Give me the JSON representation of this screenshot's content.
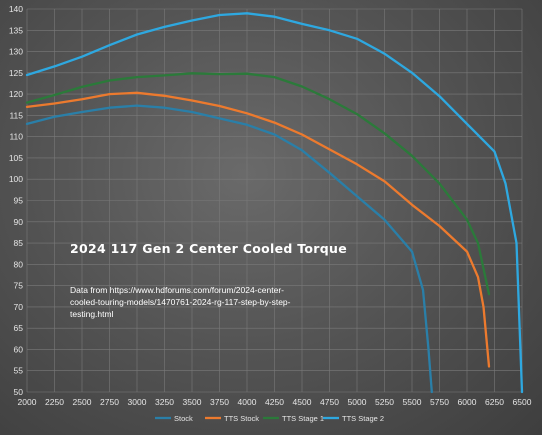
{
  "chart_data": {
    "type": "line",
    "title": "",
    "xlabel": "",
    "ylabel": "",
    "xlim": [
      2000,
      6500
    ],
    "ylim": [
      50,
      140
    ],
    "x_ticks": [
      "2000",
      "2250",
      "2500",
      "2750",
      "3000",
      "3250",
      "3500",
      "3750",
      "4000",
      "4250",
      "4500",
      "4750",
      "5000",
      "5250",
      "5500",
      "5750",
      "6000",
      "6250",
      "6500"
    ],
    "y_ticks": [
      "50",
      "55",
      "60",
      "65",
      "70",
      "75",
      "80",
      "85",
      "90",
      "95",
      "100",
      "105",
      "110",
      "115",
      "120",
      "125",
      "130",
      "135",
      "140"
    ],
    "grid": true,
    "legend_position": "bottom",
    "annotations": {
      "title": "2024 117 Gen 2 Center Cooled Torque",
      "note_lines": [
        "Data from https://www.hdforums.com/forum/2024-center-",
        "cooled-touring-models/1470761-2024-rg-117-step-by-step-",
        "testing.html"
      ]
    },
    "series": [
      {
        "name": "Stock",
        "color": "#2a7fa8",
        "points": [
          [
            2000,
            113
          ],
          [
            2250,
            114.7
          ],
          [
            2500,
            115.8
          ],
          [
            2750,
            116.8
          ],
          [
            3000,
            117.3
          ],
          [
            3250,
            116.8
          ],
          [
            3500,
            115.8
          ],
          [
            3750,
            114.3
          ],
          [
            4000,
            112.8
          ],
          [
            4250,
            110.5
          ],
          [
            4500,
            106.8
          ],
          [
            4750,
            101.5
          ],
          [
            5000,
            96
          ],
          [
            5250,
            90.5
          ],
          [
            5500,
            83
          ],
          [
            5600,
            74
          ],
          [
            5650,
            60
          ],
          [
            5680,
            50
          ]
        ]
      },
      {
        "name": "TTS Stock",
        "color": "#ec7a2e",
        "points": [
          [
            2000,
            117
          ],
          [
            2250,
            117.8
          ],
          [
            2500,
            118.8
          ],
          [
            2750,
            120
          ],
          [
            3000,
            120.3
          ],
          [
            3250,
            119.6
          ],
          [
            3500,
            118.5
          ],
          [
            3750,
            117.2
          ],
          [
            4000,
            115.5
          ],
          [
            4250,
            113.3
          ],
          [
            4500,
            110.5
          ],
          [
            4750,
            107
          ],
          [
            5000,
            103.5
          ],
          [
            5250,
            99.5
          ],
          [
            5500,
            94
          ],
          [
            5750,
            89
          ],
          [
            6000,
            83
          ],
          [
            6100,
            77
          ],
          [
            6150,
            70
          ],
          [
            6200,
            56
          ]
        ]
      },
      {
        "name": "TTS Stage 1",
        "color": "#2b7a3a",
        "points": [
          [
            2000,
            118
          ],
          [
            2250,
            119.8
          ],
          [
            2500,
            121.7
          ],
          [
            2750,
            123.2
          ],
          [
            3000,
            124
          ],
          [
            3250,
            124.4
          ],
          [
            3500,
            124.9
          ],
          [
            3750,
            124.7
          ],
          [
            4000,
            124.8
          ],
          [
            4250,
            124
          ],
          [
            4500,
            121.8
          ],
          [
            4750,
            118.8
          ],
          [
            5000,
            115.3
          ],
          [
            5250,
            110.8
          ],
          [
            5500,
            105.5
          ],
          [
            5750,
            99
          ],
          [
            6000,
            90.5
          ],
          [
            6100,
            85
          ],
          [
            6150,
            79
          ],
          [
            6200,
            73
          ]
        ]
      },
      {
        "name": "TTS Stage 2",
        "color": "#2ea8e0",
        "points": [
          [
            2000,
            124.5
          ],
          [
            2250,
            126.5
          ],
          [
            2500,
            128.8
          ],
          [
            2750,
            131.5
          ],
          [
            3000,
            134
          ],
          [
            3250,
            135.8
          ],
          [
            3500,
            137.3
          ],
          [
            3750,
            138.6
          ],
          [
            4000,
            139
          ],
          [
            4250,
            138.2
          ],
          [
            4500,
            136.5
          ],
          [
            4750,
            135
          ],
          [
            5000,
            133
          ],
          [
            5250,
            129.5
          ],
          [
            5500,
            125
          ],
          [
            5750,
            119.5
          ],
          [
            6000,
            113
          ],
          [
            6250,
            106.5
          ],
          [
            6350,
            99
          ],
          [
            6450,
            85
          ],
          [
            6500,
            50
          ]
        ]
      }
    ]
  }
}
